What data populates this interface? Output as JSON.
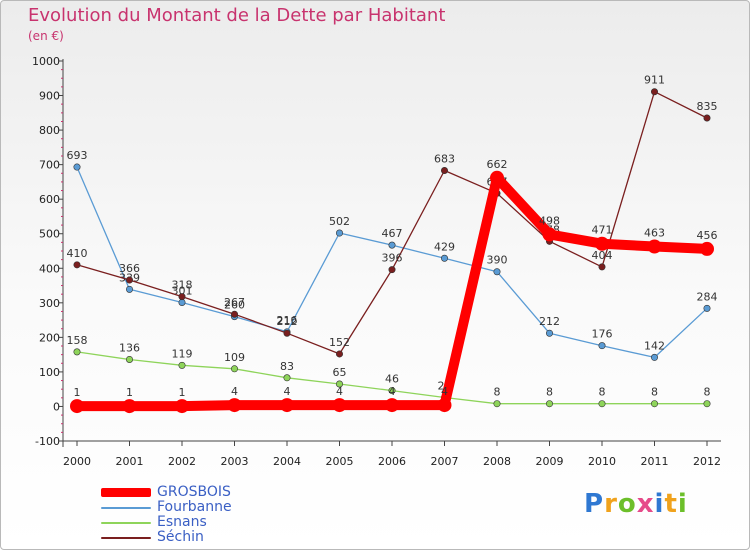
{
  "header": {
    "title": "Evolution du Montant de la Dette par Habitant",
    "subtitle": "(en €)"
  },
  "logo": {
    "text": "Proxiti",
    "colors": [
      "#2f78d2",
      "#f0a21c",
      "#6cbf2a",
      "#e64b8a",
      "#2f78d2",
      "#f0a21c",
      "#6cbf2a"
    ]
  },
  "chart_data": {
    "type": "line",
    "title": "Evolution du Montant de la Dette par Habitant",
    "subtitle": "(en €)",
    "xlabel": "",
    "ylabel": "",
    "x": [
      "2000",
      "2001",
      "2002",
      "2003",
      "2004",
      "2005",
      "2006",
      "2007",
      "2008",
      "2009",
      "2010",
      "2011",
      "2012"
    ],
    "ylim": [
      -100,
      1000
    ],
    "yticks": [
      -100,
      0,
      100,
      200,
      300,
      400,
      500,
      600,
      700,
      800,
      900,
      1000
    ],
    "grid": false,
    "legend_position": "bottom-left",
    "series": [
      {
        "name": "GROSBOIS",
        "color": "#ff0000",
        "values": [
          1,
          1,
          1,
          4,
          4,
          4,
          4,
          4,
          662,
          498,
          471,
          463,
          456
        ]
      },
      {
        "name": "Fourbanne",
        "color": "#5a9bd4",
        "values": [
          693,
          339,
          301,
          260,
          216,
          502,
          467,
          429,
          390,
          212,
          176,
          142,
          284
        ]
      },
      {
        "name": "Esnans",
        "color": "#8ed45a",
        "values": [
          158,
          136,
          119,
          109,
          83,
          65,
          46,
          26,
          8,
          8,
          8,
          8,
          8
        ]
      },
      {
        "name": "Séchin",
        "color": "#7a1f1f",
        "values": [
          410,
          366,
          318,
          267,
          212,
          152,
          396,
          683,
          617,
          478,
          404,
          911,
          835
        ]
      }
    ]
  }
}
